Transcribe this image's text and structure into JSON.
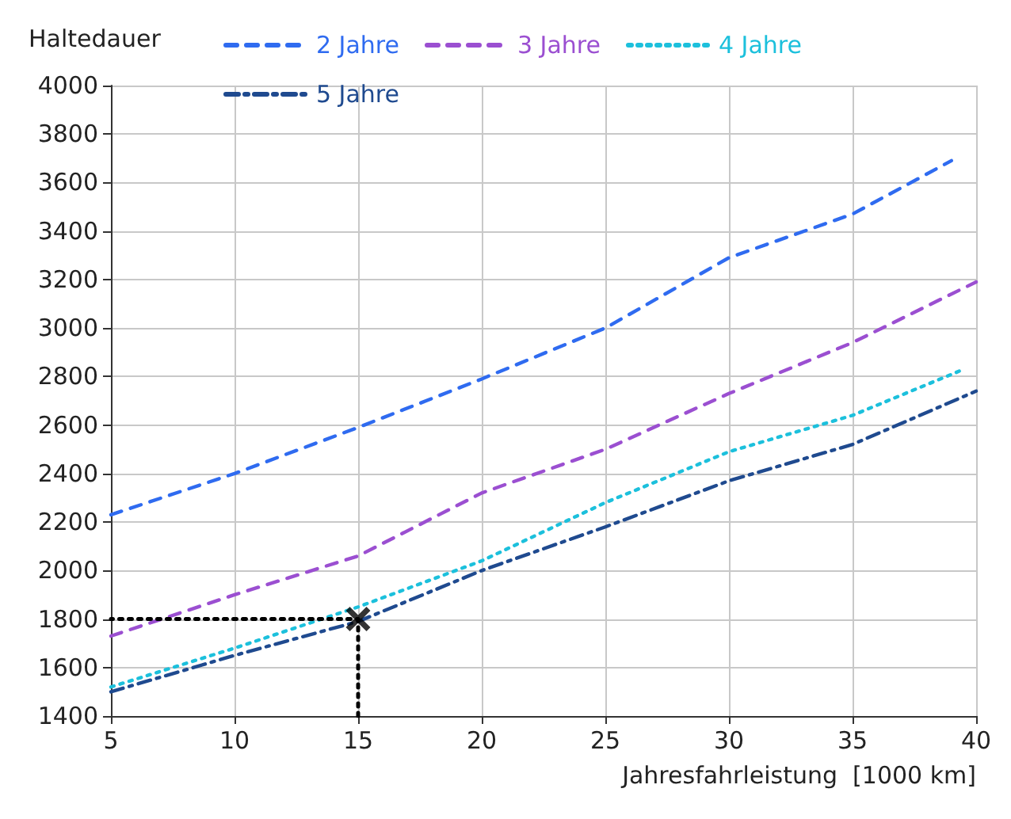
{
  "chart_data": {
    "type": "line",
    "xlabel": "Jahresfahrleistung  [1000 km]",
    "legend_title": "Haltedauer",
    "x": [
      5,
      10,
      15,
      20,
      25,
      30,
      35,
      40
    ],
    "series": [
      {
        "name": "2 Jahre",
        "color": "#2f6bf0",
        "line_style": "dashed",
        "x": [
          5,
          10,
          15,
          20,
          25,
          30,
          35,
          39
        ],
        "values": [
          2230,
          2400,
          2590,
          2790,
          3000,
          3290,
          3470,
          3690
        ]
      },
      {
        "name": "3 Jahre",
        "color": "#9b4fd1",
        "line_style": "dashed",
        "values": [
          1730,
          1900,
          2060,
          2320,
          2500,
          2730,
          2940,
          3190
        ]
      },
      {
        "name": "4 Jahre",
        "color": "#1cc0dc",
        "line_style": "dotted",
        "x": [
          5,
          10,
          15,
          20,
          25,
          30,
          35,
          39.5
        ],
        "values": [
          1520,
          1680,
          1850,
          2040,
          2280,
          2490,
          2640,
          2830
        ]
      },
      {
        "name": "5 Jahre",
        "color": "#1f4a8f",
        "line_style": "dashdot",
        "values": [
          1500,
          1650,
          1790,
          2000,
          2180,
          2370,
          2520,
          2740
        ]
      },
      {
        "type": "line",
        "color": "#000000",
        "line_style": "dotted",
        "x": [
          15,
          15,
          5
        ],
        "values": [
          1400,
          1800,
          1800
        ]
      },
      {
        "type": "scatter",
        "color": "#000000",
        "marker": "cross",
        "x": [
          15
        ],
        "values": [
          1800
        ]
      }
    ],
    "xlim": [
      5,
      40
    ],
    "xticks": [
      5,
      10,
      15,
      20,
      25,
      30,
      35,
      40
    ],
    "ylim": [
      1400,
      4000
    ],
    "yticks": [
      1400,
      1600,
      1800,
      2000,
      2200,
      2400,
      2600,
      2800,
      3000,
      3200,
      3400,
      3600,
      3800,
      4000
    ],
    "grid": true,
    "legend": "top",
    "marker": "none"
  }
}
